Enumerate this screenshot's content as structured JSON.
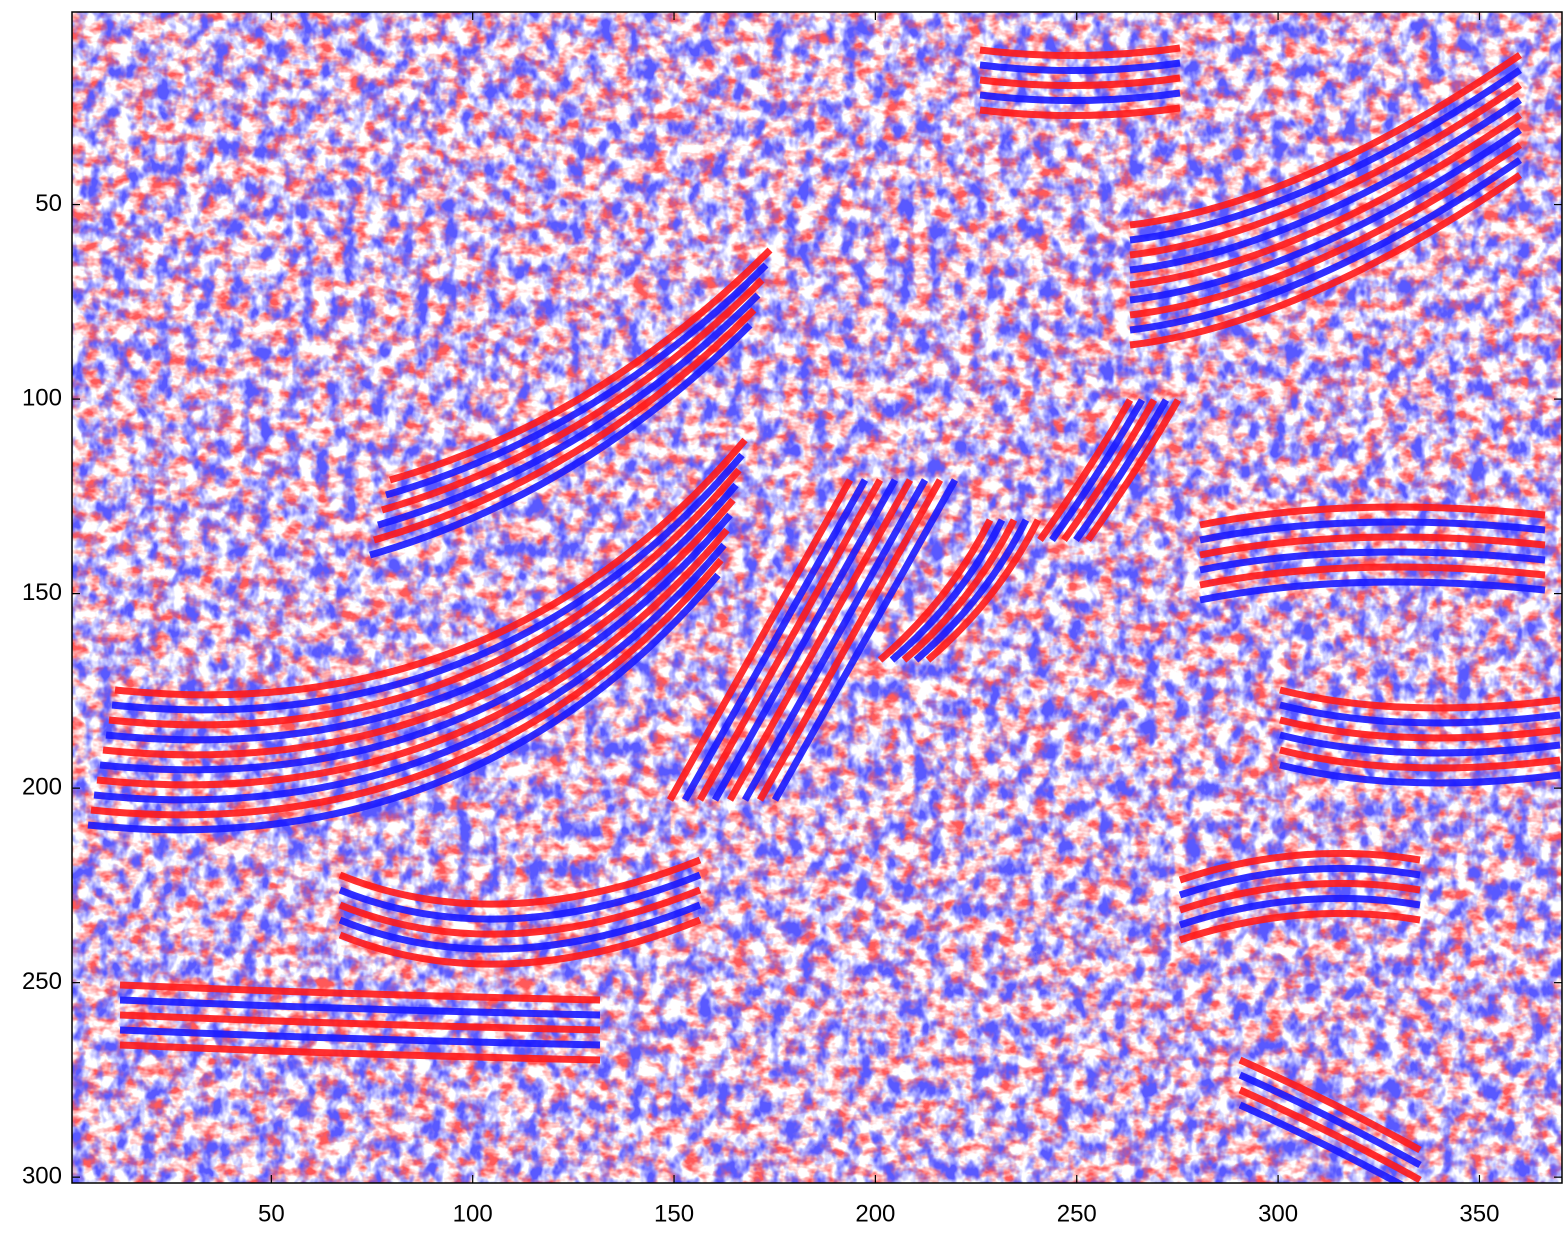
{
  "chart_data": {
    "type": "image",
    "xlim": [
      0.5,
      370.5
    ],
    "ylim": [
      0.5,
      301.5
    ],
    "y_reversed": true,
    "xticks": [
      50,
      100,
      150,
      200,
      250,
      300,
      350
    ],
    "yticks": [
      50,
      100,
      150,
      200,
      250,
      300
    ],
    "colormap": [
      "#1a1aff",
      "#ffffff",
      "#ff1a1a"
    ]
  }
}
